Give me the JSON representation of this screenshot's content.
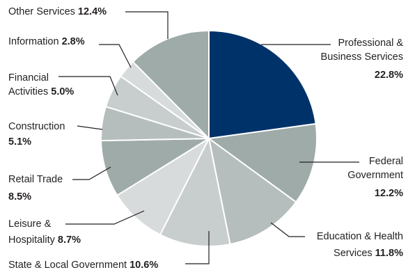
{
  "chart_data": {
    "type": "pie",
    "start_angle_deg": 0,
    "direction": "clockwise",
    "slices": [
      {
        "key": "pbs",
        "label": "Professional & Business Services",
        "value": 22.8,
        "value_text": "22.8%",
        "color": "#00326a"
      },
      {
        "key": "fed",
        "label": "Federal Government",
        "value": 12.2,
        "value_text": "12.2%",
        "color": "#9eaba8"
      },
      {
        "key": "edu",
        "label": "Education & Health Services",
        "value": 11.8,
        "value_text": "11.8%",
        "color": "#b5bebc"
      },
      {
        "key": "sl",
        "label": "State & Local Government",
        "value": 10.6,
        "value_text": "10.6%",
        "color": "#c8cecd"
      },
      {
        "key": "lh",
        "label": "Leisure & Hospitality",
        "value": 8.7,
        "value_text": "8.7%",
        "color": "#d7dbdb"
      },
      {
        "key": "rt",
        "label": "Retail Trade",
        "value": 8.5,
        "value_text": "8.5%",
        "color": "#9eaba8"
      },
      {
        "key": "con",
        "label": "Construction",
        "value": 5.1,
        "value_text": "5.1%",
        "color": "#b5bebc"
      },
      {
        "key": "fin",
        "label": "Financial Activities",
        "value": 5.0,
        "value_text": "5.0%",
        "color": "#c8cecd"
      },
      {
        "key": "info",
        "label": "Information",
        "value": 2.8,
        "value_text": "2.8%",
        "color": "#d7dbdb"
      },
      {
        "key": "oth",
        "label": "Other Services",
        "value": 12.4,
        "value_text": "12.4%",
        "color": "#9eaba8"
      }
    ],
    "label_lines": {
      "pbs": [
        "Professional &",
        "Business Services",
        ""
      ],
      "fed": [
        "Federal",
        "Government",
        ""
      ],
      "edu": [
        "Education & Health",
        "Services "
      ],
      "sl": [
        "State & Local Government "
      ],
      "lh": [
        "Leisure &",
        "Hospitality "
      ],
      "rt": [
        "Retail Trade",
        ""
      ],
      "con": [
        "Construction",
        ""
      ],
      "fin": [
        "Financial",
        "Activities "
      ],
      "info": [
        "Information "
      ],
      "oth": [
        "Other Services "
      ]
    }
  }
}
